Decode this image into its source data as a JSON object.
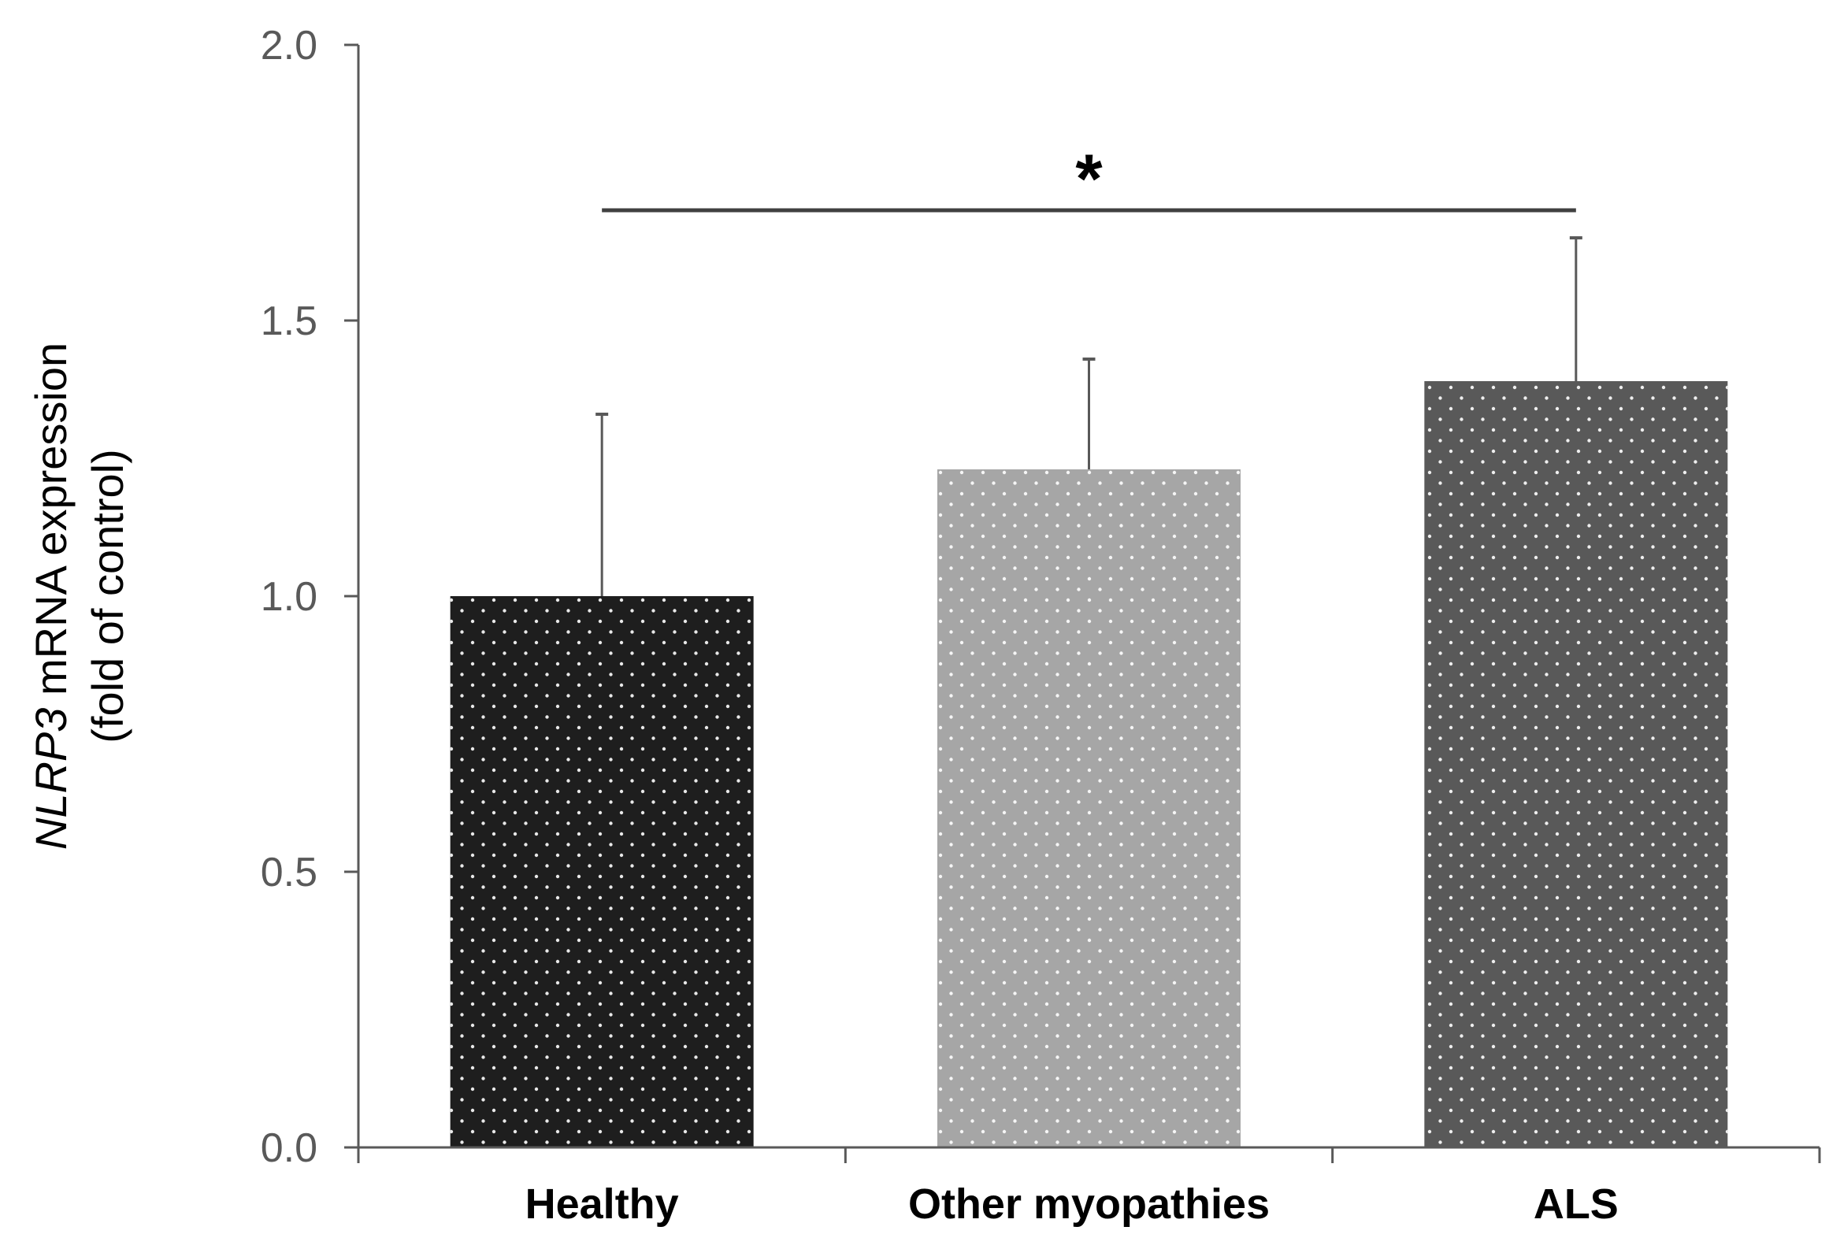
{
  "chart_data": {
    "type": "bar",
    "categories": [
      "Healthy",
      "Other myopathies",
      "ALS"
    ],
    "values": [
      1.0,
      1.23,
      1.39
    ],
    "error_bars_upper": [
      0.33,
      0.2,
      0.26
    ],
    "ylim": [
      0,
      2.0
    ],
    "yticks": [
      "0.0",
      "0.5",
      "1.0",
      "1.5",
      "2.0"
    ],
    "ylabel_italic": "NLRP3",
    "ylabel_rest": " mRNA expression",
    "ylabel_line2": "(fold of control)",
    "xlabel": "",
    "bar_colors": [
      "#1e1e1e",
      "#a6a6a6",
      "#595959"
    ],
    "significance": {
      "label": "*",
      "from_category": "Healthy",
      "to_category": "ALS",
      "y": 1.7
    },
    "grid": false,
    "legend": "none"
  }
}
